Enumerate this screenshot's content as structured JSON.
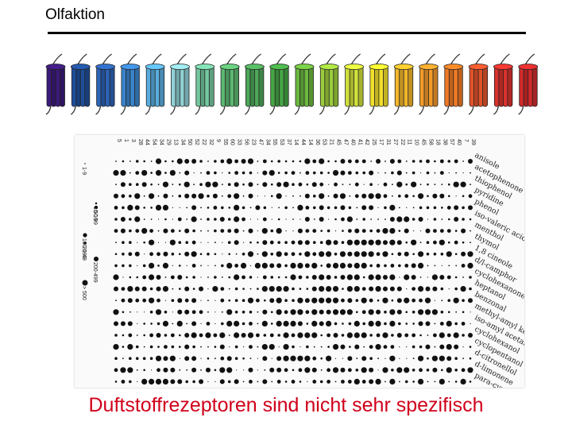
{
  "slide": {
    "title": "Olfaktion",
    "caption": "Duftstoffrezeptoren sind nicht sehr spezifisch"
  },
  "receptor_colors": [
    "#3b1a78",
    "#1f4e99",
    "#2c63b5",
    "#3a84cc",
    "#5aaede",
    "#8fd0d4",
    "#74c8a0",
    "#5db870",
    "#4ea85a",
    "#45a545",
    "#6cb83f",
    "#9ccc3c",
    "#cfe03a",
    "#f2df2c",
    "#f2b62a",
    "#f29a2a",
    "#ef7a24",
    "#e2532a",
    "#d8322c",
    "#cf2a2a"
  ],
  "odorants": [
    "anisole",
    "acetophenone",
    "thiophenol",
    "pyridine",
    "phenol",
    "iso-valeric acid",
    "menthol",
    "thymol",
    "1,8 cineole",
    "d/l-camphor",
    "cyclohexanone",
    "heptanol",
    "benzonal",
    "methyl-amyl ketone",
    "iso-amyl acetate",
    "cyclohexanol",
    "cyclopentanol",
    "d-citronellol",
    "d-limonene",
    "para-cymene"
  ],
  "columns": [
    "5",
    "1",
    "3",
    "28",
    "44",
    "54",
    "34",
    "29",
    "13",
    "34",
    "50",
    "52",
    "22",
    "32",
    "9",
    "55",
    "60",
    "33",
    "56",
    "23",
    "47",
    "34",
    "55",
    "53",
    "37",
    "14",
    "44",
    "14",
    "36",
    "53",
    "21",
    "45",
    "47",
    "40",
    "41",
    "42",
    "25",
    "17",
    "31",
    "27",
    "22",
    "11",
    "10",
    "45",
    "58",
    "18",
    "38",
    "57",
    "40",
    "7",
    "39"
  ],
  "legend": [
    "1-9",
    "10-19",
    "20-49",
    "50-99",
    "100-199",
    "200-499",
    "> 500"
  ]
}
